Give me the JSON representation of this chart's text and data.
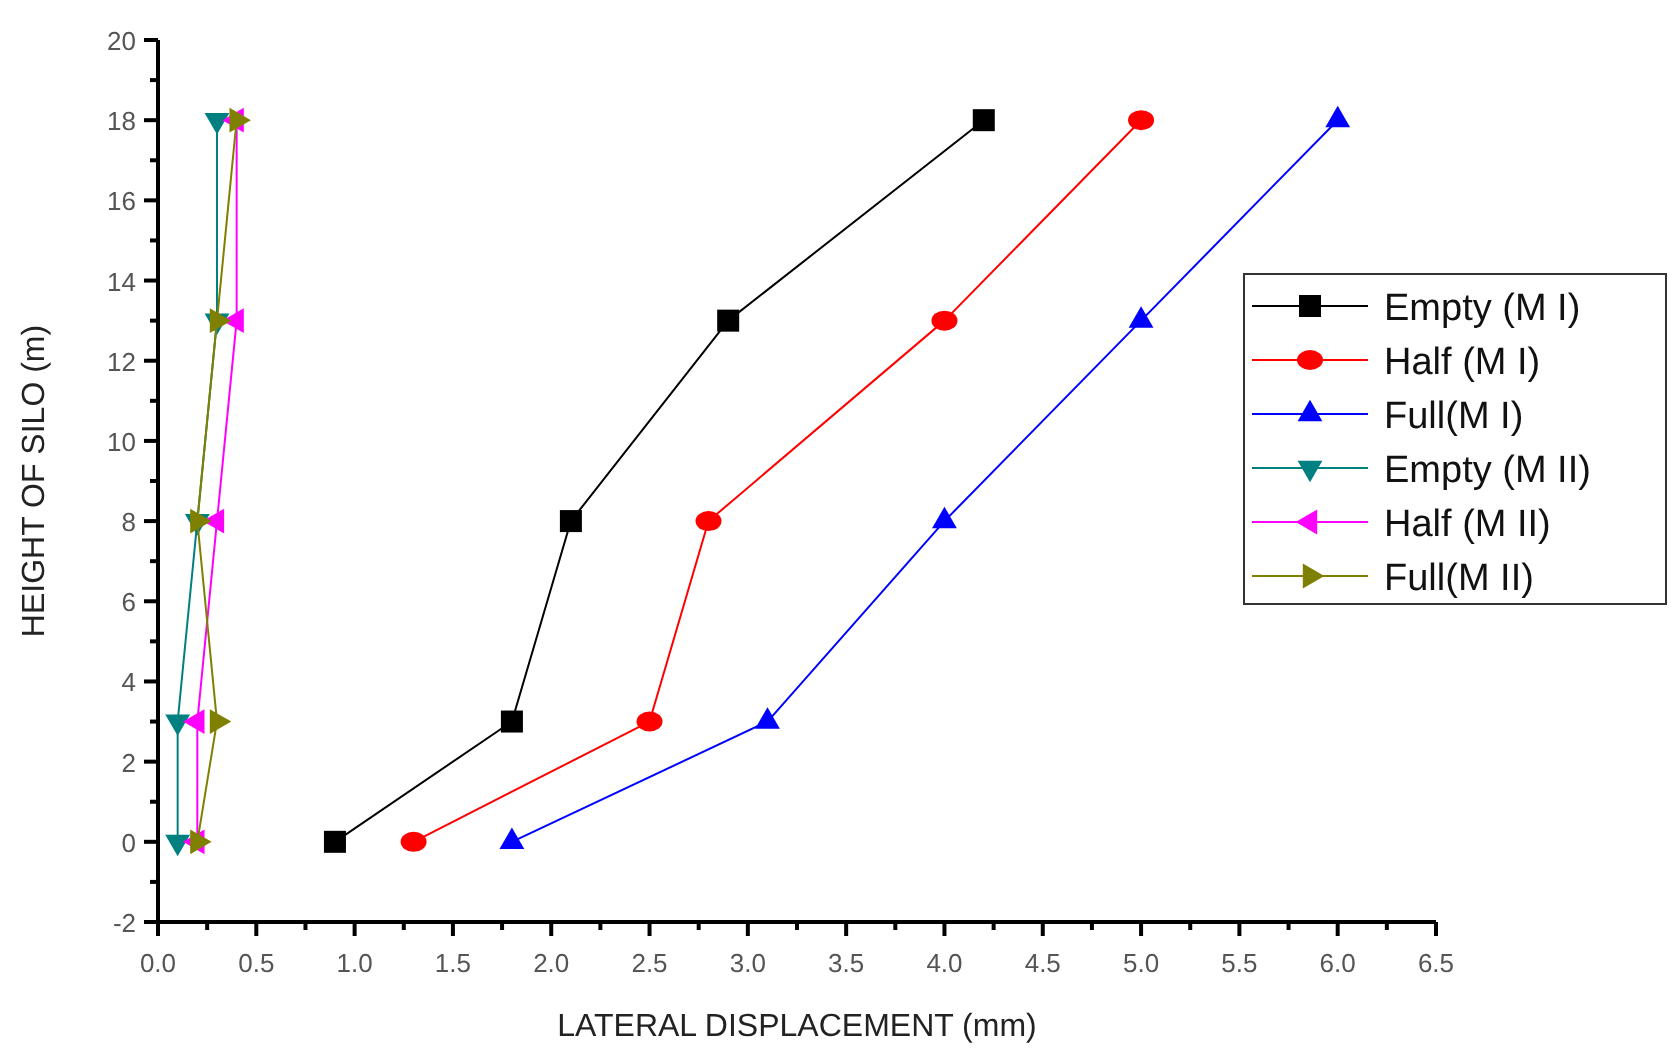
{
  "chart_data": {
    "type": "line",
    "xlabel": "LATERAL DISPLACEMENT (mm)",
    "ylabel": "HEIGHT OF SILO (m)",
    "xlim": [
      0,
      6.5
    ],
    "ylim": [
      -2,
      20
    ],
    "xticks": [
      {
        "value": 0,
        "label": "0.0"
      },
      {
        "value": 0.25,
        "label": null
      },
      {
        "value": 0.5,
        "label": "0.5"
      },
      {
        "value": 0.75,
        "label": null
      },
      {
        "value": 1,
        "label": "1.0"
      },
      {
        "value": 1.25,
        "label": null
      },
      {
        "value": 1.5,
        "label": "1.5"
      },
      {
        "value": 1.75,
        "label": null
      },
      {
        "value": 2,
        "label": "2.0"
      },
      {
        "value": 2.25,
        "label": null
      },
      {
        "value": 2.5,
        "label": "2.5"
      },
      {
        "value": 2.75,
        "label": null
      },
      {
        "value": 3,
        "label": "3.0"
      },
      {
        "value": 3.25,
        "label": null
      },
      {
        "value": 3.5,
        "label": "3.5"
      },
      {
        "value": 3.75,
        "label": null
      },
      {
        "value": 4,
        "label": "4.0"
      },
      {
        "value": 4.25,
        "label": null
      },
      {
        "value": 4.5,
        "label": "4.5"
      },
      {
        "value": 4.75,
        "label": null
      },
      {
        "value": 5,
        "label": "5.0"
      },
      {
        "value": 5.25,
        "label": null
      },
      {
        "value": 5.5,
        "label": "5.5"
      },
      {
        "value": 5.75,
        "label": null
      },
      {
        "value": 6,
        "label": "6.0"
      },
      {
        "value": 6.25,
        "label": null
      },
      {
        "value": 6.5,
        "label": "6.5"
      }
    ],
    "yticks": [
      -2,
      {
        "value": -1,
        "label": null
      },
      0,
      {
        "value": 1,
        "label": null
      },
      2,
      {
        "value": 3,
        "label": null
      },
      4,
      {
        "value": 5,
        "label": null
      },
      6,
      {
        "value": 7,
        "label": null
      },
      8,
      {
        "value": 9,
        "label": null
      },
      10,
      {
        "value": 11,
        "label": null
      },
      12,
      {
        "value": 13,
        "label": null
      },
      14,
      {
        "value": 15,
        "label": null
      },
      16,
      {
        "value": 17,
        "label": null
      },
      18,
      {
        "value": 19,
        "label": null
      },
      20
    ],
    "grid": false,
    "legend": "right",
    "line_style": "solid",
    "series": [
      {
        "name": "Empty (M I)",
        "color": "#000000",
        "marker": "square",
        "x": [
          0.9,
          1.8,
          2.1,
          2.9,
          4.2
        ],
        "values": [
          0,
          3,
          8,
          13,
          18
        ]
      },
      {
        "name": "Half (M I)",
        "color": "#ff0000",
        "marker": "circle",
        "x": [
          1.3,
          2.5,
          2.8,
          4.0,
          5.0
        ],
        "values": [
          0,
          3,
          8,
          13,
          18
        ]
      },
      {
        "name": "Full(M I)",
        "color": "#0000ff",
        "marker": "triangle",
        "x": [
          1.8,
          3.1,
          4.0,
          5.0,
          6.0
        ],
        "values": [
          0,
          3,
          8,
          13,
          18
        ]
      },
      {
        "name": "Empty (M II)",
        "color": "#008080",
        "marker": "triangle-down",
        "x": [
          0.1,
          0.1,
          0.2,
          0.3,
          0.3
        ],
        "values": [
          0,
          3,
          8,
          13,
          18
        ]
      },
      {
        "name": "Half (M II)",
        "color": "#ff00ff",
        "marker": "triangle-left",
        "x": [
          0.2,
          0.2,
          0.3,
          0.4,
          0.4
        ],
        "values": [
          0,
          3,
          8,
          13,
          18
        ]
      },
      {
        "name": "Full(M II)",
        "color": "#808000",
        "marker": "triangle-right",
        "x": [
          0.2,
          0.3,
          0.2,
          0.3,
          0.4
        ],
        "values": [
          0,
          3,
          8,
          13,
          18
        ]
      }
    ]
  }
}
